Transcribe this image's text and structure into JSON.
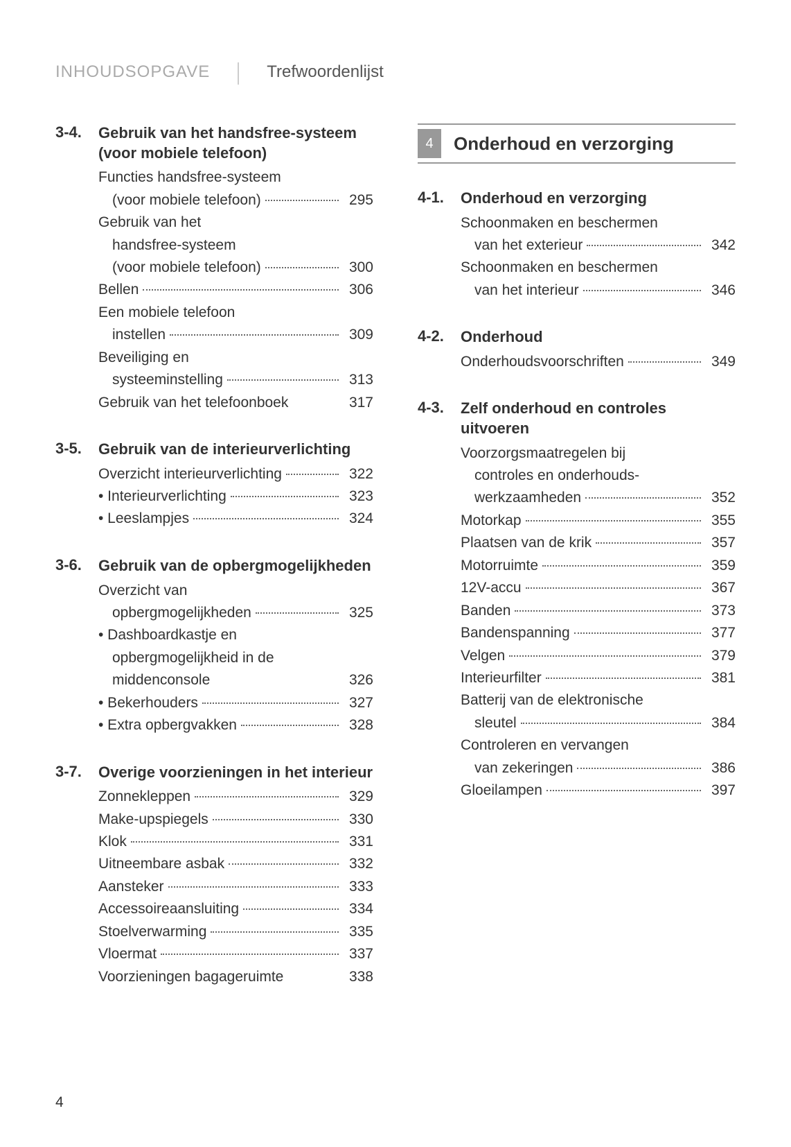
{
  "header": {
    "left": "INHOUDSOPGAVE",
    "right": "Trefwoordenlijst"
  },
  "pageNumber": "4",
  "left": {
    "sections": [
      {
        "num": "3-4.",
        "title": "Gebruik van het handsfree-systeem (voor mobiele telefoon)",
        "entries": [
          {
            "label_pre": "Functies handsfree-systeem",
            "label": "(voor mobiele telefoon)",
            "page": "295",
            "hang": true
          },
          {
            "label_pre": "Gebruik van het",
            "label_pre2": "handsfree-systeem",
            "label": "(voor mobiele telefoon)",
            "page": "300",
            "hang": true
          },
          {
            "label": "Bellen",
            "page": "306"
          },
          {
            "label_pre": "Een mobiele telefoon",
            "label": "instellen",
            "page": "309",
            "hang": true
          },
          {
            "label_pre": "Beveiliging en",
            "label": "systeeminstelling",
            "page": "313",
            "hang": true
          },
          {
            "label": "Gebruik van het telefoonboek",
            "page": "317",
            "nodots": true
          }
        ]
      },
      {
        "num": "3-5.",
        "title": "Gebruik van de interieurverlichting",
        "entries": [
          {
            "label": "Overzicht interieurverlichting",
            "page": "322"
          },
          {
            "label": "• Interieurverlichting",
            "page": "323"
          },
          {
            "label": "•  Leeslampjes",
            "page": "324"
          }
        ]
      },
      {
        "num": "3-6.",
        "title": "Gebruik van de opbergmogelijkheden",
        "entries": [
          {
            "label_pre": "Overzicht van",
            "label": "opbergmogelijkheden",
            "page": "325",
            "hang": true
          },
          {
            "label_pre": "• Dashboardkastje en",
            "label_pre2": "opbergmogelijkheid in de",
            "label": "middenconsole",
            "page": "326",
            "hang": true,
            "nodots": true
          },
          {
            "label": "• Bekerhouders",
            "page": "327"
          },
          {
            "label": "• Extra opbergvakken",
            "page": "328"
          }
        ]
      },
      {
        "num": "3-7.",
        "title": "Overige voorzieningen in het interieur",
        "entries": [
          {
            "label": "Zonnekleppen",
            "page": "329"
          },
          {
            "label": "Make-upspiegels",
            "page": "330"
          },
          {
            "label": "Klok",
            "page": "331"
          },
          {
            "label": "Uitneembare asbak",
            "page": "332"
          },
          {
            "label": "Aansteker",
            "page": "333"
          },
          {
            "label": "Accessoireaansluiting",
            "page": "334"
          },
          {
            "label": "Stoelverwarming",
            "page": "335"
          },
          {
            "label": "Vloermat",
            "page": "337"
          },
          {
            "label": "Voorzieningen bagageruimte",
            "page": "338",
            "nodots": true
          }
        ]
      }
    ]
  },
  "right": {
    "part": {
      "number": "4",
      "title": "Onderhoud en verzorging"
    },
    "sections": [
      {
        "num": "4-1.",
        "title": "Onderhoud en verzorging",
        "entries": [
          {
            "label_pre": "Schoonmaken en beschermen",
            "label": "van het exterieur",
            "page": "342",
            "hang": true
          },
          {
            "label_pre": "Schoonmaken en beschermen",
            "label": "van het interieur",
            "page": "346",
            "hang": true
          }
        ]
      },
      {
        "num": "4-2.",
        "title": "Onderhoud",
        "entries": [
          {
            "label": "Onderhoudsvoorschriften",
            "page": "349"
          }
        ]
      },
      {
        "num": "4-3.",
        "title": "Zelf onderhoud en controles uitvoeren",
        "entries": [
          {
            "label_pre": "Voorzorgsmaatregelen bij",
            "label_pre2": "controles en onderhouds-",
            "label": "werkzaamheden",
            "page": "352",
            "hang": true
          },
          {
            "label": "Motorkap",
            "page": "355"
          },
          {
            "label": "Plaatsen van de krik",
            "page": "357"
          },
          {
            "label": "Motorruimte",
            "page": "359"
          },
          {
            "label": "12V-accu",
            "page": "367"
          },
          {
            "label": "Banden",
            "page": "373"
          },
          {
            "label": "Bandenspanning",
            "page": "377"
          },
          {
            "label": "Velgen",
            "page": "379"
          },
          {
            "label": "Interieurfilter",
            "page": "381"
          },
          {
            "label_pre": "Batterij van de elektronische",
            "label": "sleutel",
            "page": "384",
            "hang": true
          },
          {
            "label_pre": "Controleren en vervangen",
            "label": "van zekeringen",
            "page": "386",
            "hang": true
          },
          {
            "label": "Gloeilampen",
            "page": "397"
          }
        ]
      }
    ]
  }
}
